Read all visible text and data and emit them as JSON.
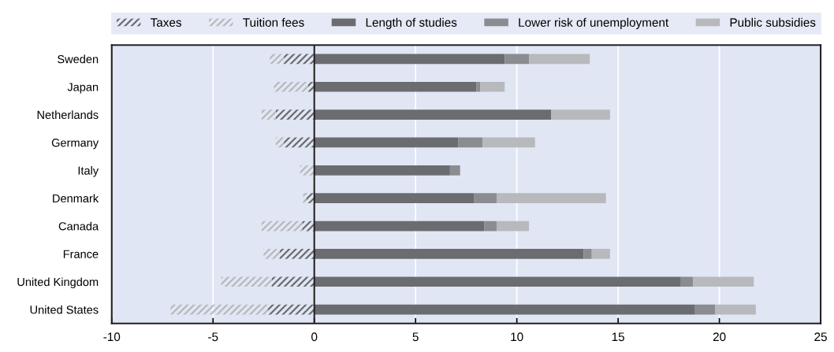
{
  "chart_data": {
    "type": "bar",
    "orientation": "horizontal",
    "stacked": true,
    "categories": [
      "Sweden",
      "Japan",
      "Netherlands",
      "Germany",
      "Italy",
      "Denmark",
      "Canada",
      "France",
      "United Kingdom",
      "United States"
    ],
    "series": [
      {
        "name": "Taxes",
        "color": "#6b6c70",
        "values": [
          -1.5,
          -0.3,
          -1.9,
          -1.5,
          0,
          -0.4,
          -0.6,
          -1.7,
          -2.1,
          -2.3
        ]
      },
      {
        "name": "Tuition fees",
        "color": "#b7b8ba",
        "values": [
          -0.7,
          -1.7,
          -0.7,
          -0.4,
          -0.7,
          -0.15,
          -2.0,
          -0.8,
          -2.5,
          -4.8
        ]
      },
      {
        "name": "Length of studies",
        "color": "#6b6c70",
        "values": [
          9.4,
          8.0,
          11.7,
          7.1,
          6.7,
          7.9,
          8.4,
          13.3,
          18.1,
          18.8
        ]
      },
      {
        "name": "Lower risk of unemployment",
        "color": "#8b8c90",
        "values": [
          1.2,
          0.2,
          0,
          1.2,
          0.5,
          1.1,
          0.6,
          0.4,
          0.6,
          1.0
        ]
      },
      {
        "name": "Public subsidies",
        "color": "#b8b9bc",
        "values": [
          3.0,
          1.2,
          2.9,
          2.6,
          0,
          5.4,
          1.6,
          0.9,
          3.0,
          2.0
        ]
      }
    ],
    "xlim": [
      -10,
      25
    ],
    "xticks": [
      -10,
      -5,
      0,
      5,
      10,
      15,
      20,
      25
    ],
    "ref_lines": [
      {
        "axis": "x",
        "value": 0,
        "color": "#231f20"
      }
    ],
    "grid": "x",
    "legend": "top"
  }
}
